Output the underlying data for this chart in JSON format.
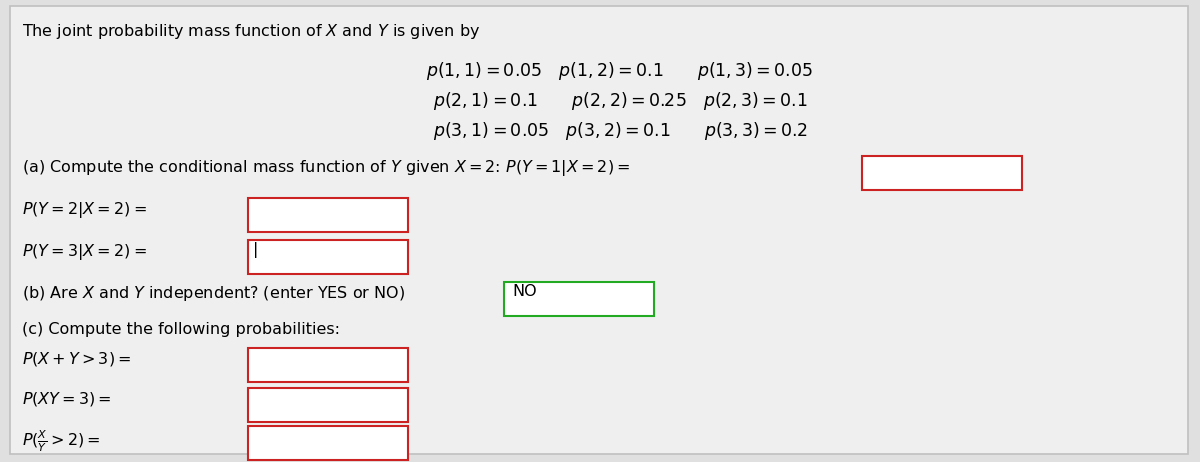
{
  "bg_color": "#e0e0e0",
  "panel_color": "#efefef",
  "box_fill": "#ffffff",
  "box_red": "#cc2222",
  "box_green": "#22aa22",
  "title": "The joint probability mass function of $X$ and $Y$ is given by",
  "pmf_row1": "$p(1,1) = 0.05\\quad p(1,2) = 0.1\\qquad p(1,3) = 0.05$",
  "pmf_row2": "$p(2,1) = 0.1\\qquad p(2,2) = 0.25\\quad p(2,3) = 0.1$",
  "pmf_row3": "$p(3,1) = 0.05\\quad p(3,2) = 0.1\\qquad p(3,3) = 0.2$",
  "part_a": "(a) Compute the conditional mass function of $Y$ given $X = 2$: $P(Y = 1|X = 2) =$",
  "py2": "$P(Y = 2|X = 2) =$",
  "py3": "$P(Y = 3|X = 2) =$",
  "part_b": "(b) Are $X$ and $Y$ independent? (enter YES or NO)",
  "answer_b": "NO",
  "part_c": "(c) Compute the following probabilities:",
  "prob1": "$P(X + Y > 3) =$",
  "prob2": "$P(XY = 3) =$",
  "prob3": "$P(\\dfrac{X}{Y} > 2) =$",
  "panel_edge": "#c0c0c0",
  "font_size": 12.5,
  "font_size_small": 11.5
}
